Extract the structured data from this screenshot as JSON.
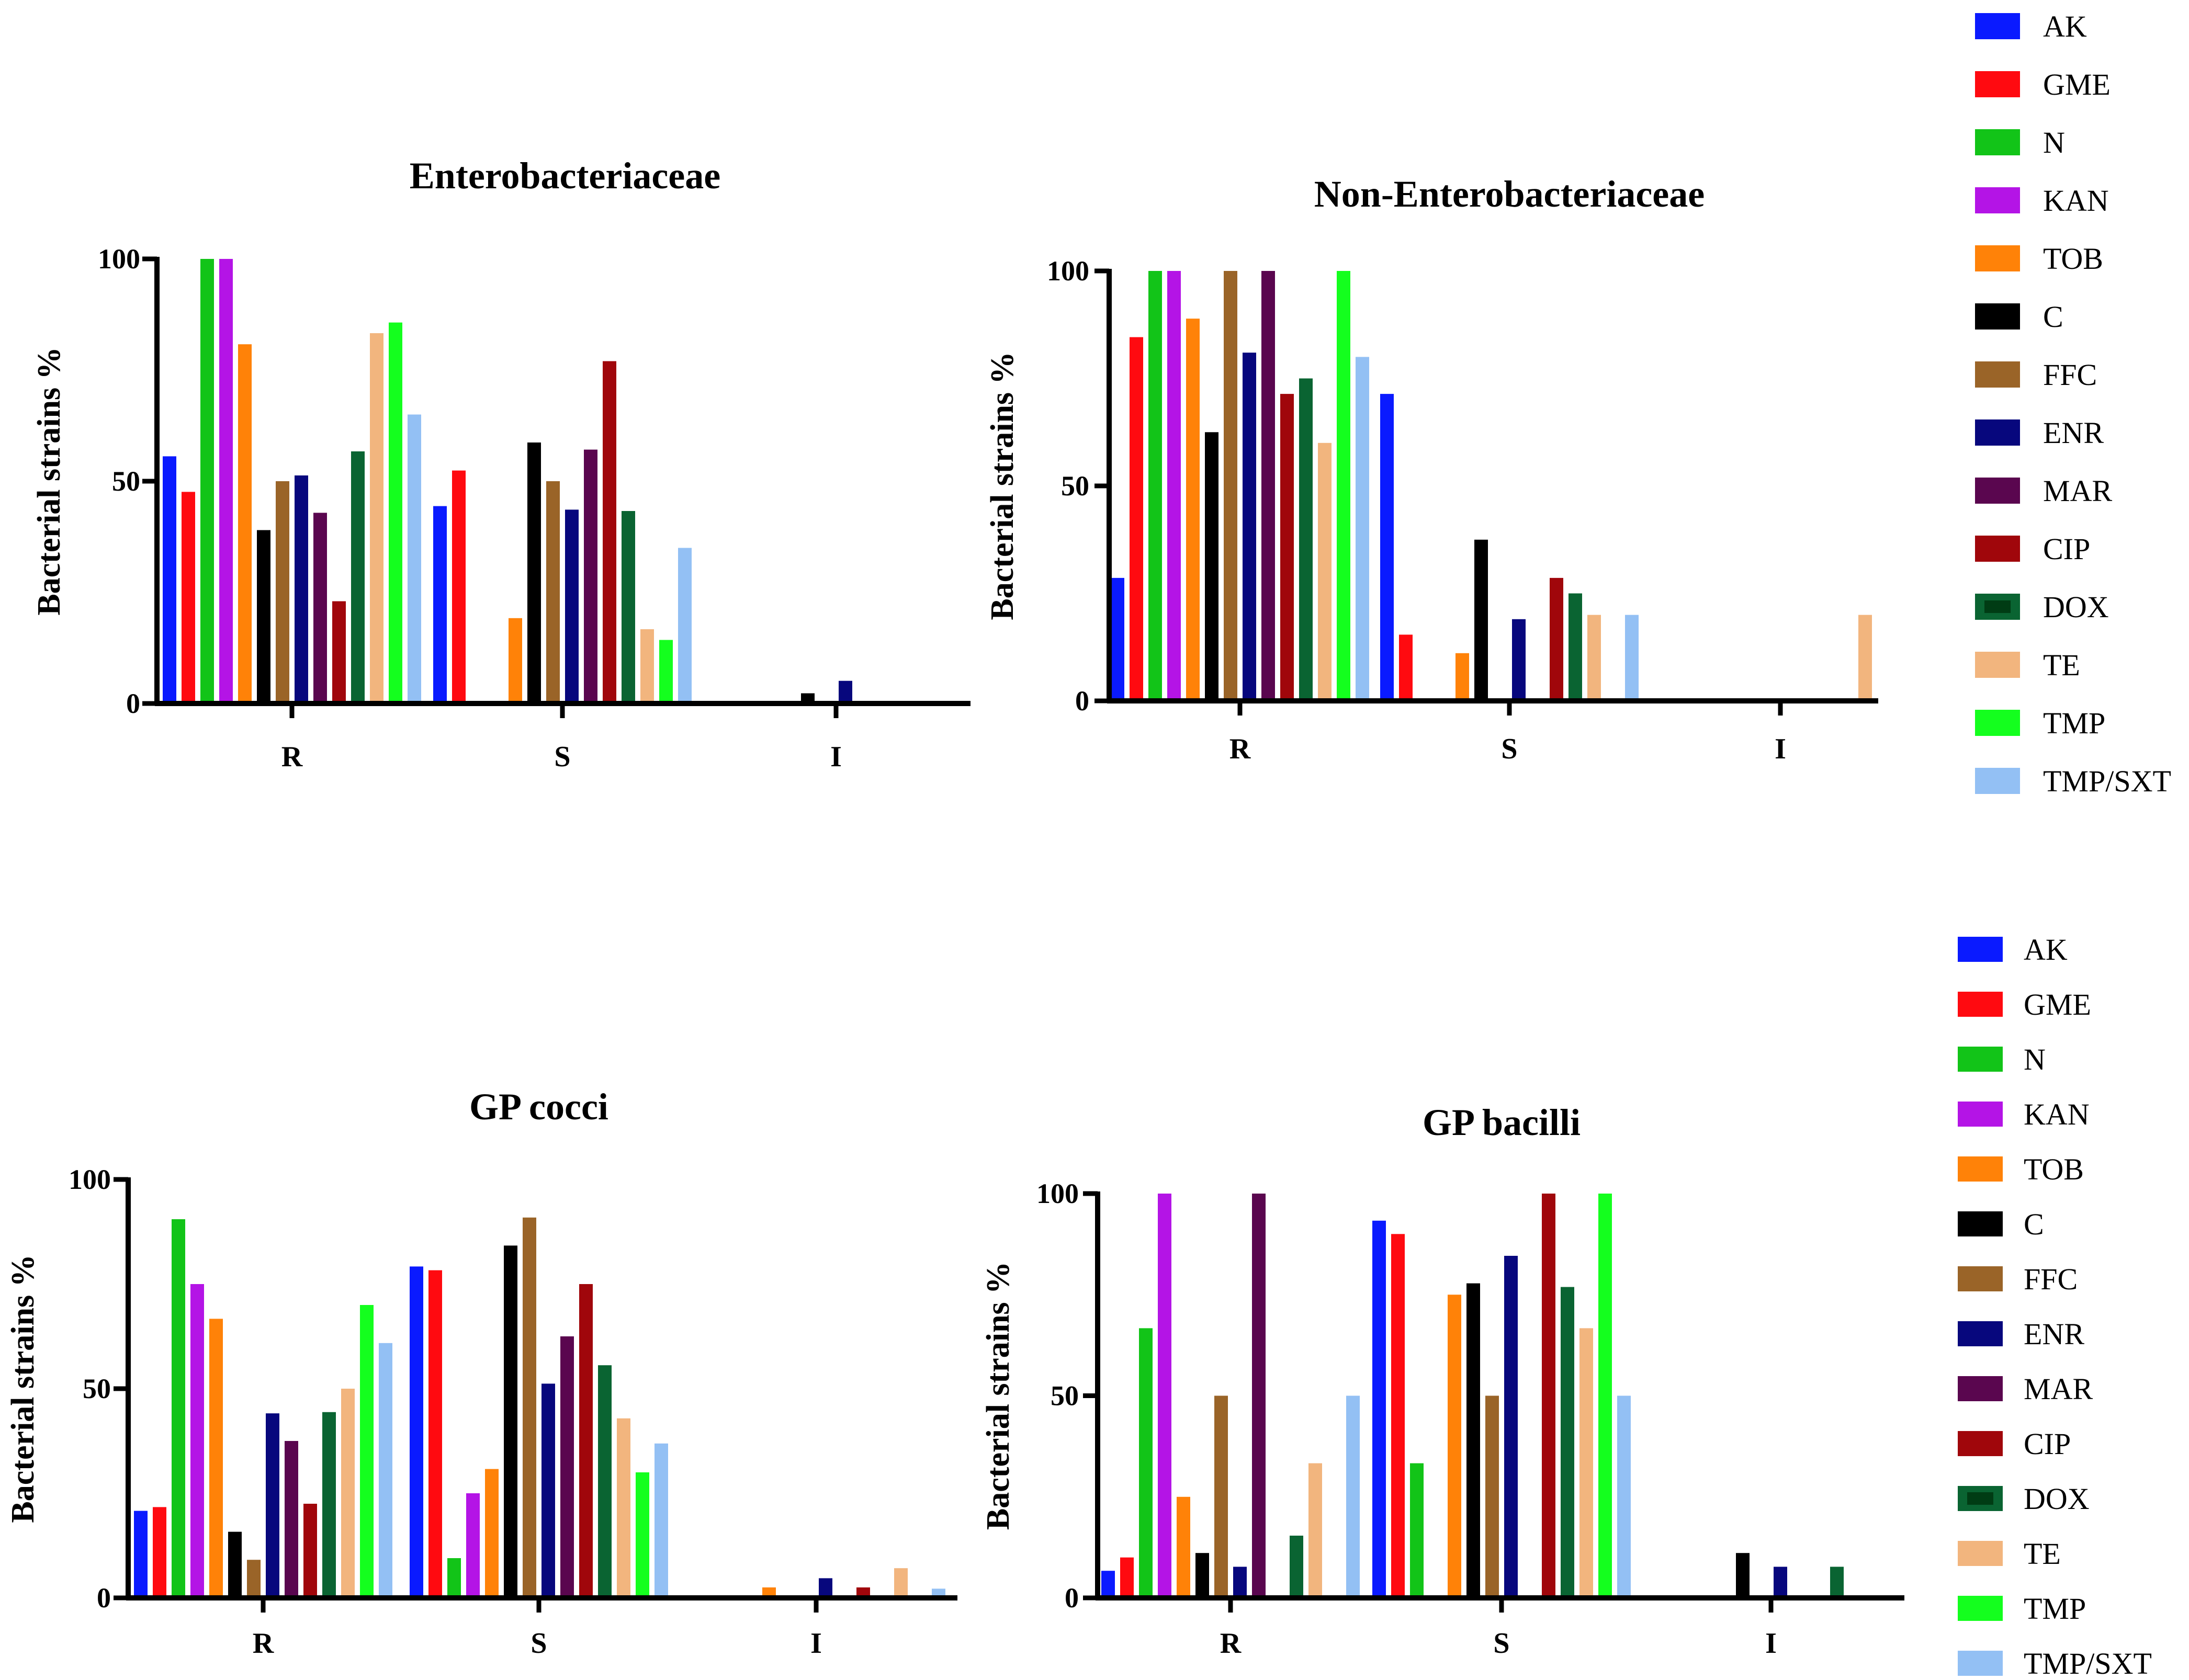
{
  "figure": {
    "colors": {
      "AK": "#0a1aff",
      "GME": "#ff0a10",
      "N": "#12c418",
      "KAN": "#b414e6",
      "TOB": "#ff8208",
      "C": "#000000",
      "FFC": "#9a6428",
      "ENR": "#07077d",
      "MAR": "#5a064f",
      "CIP": "#a0060b",
      "DOX": "#0a6432",
      "TE": "#f2b57e",
      "TMP": "#14ff1e",
      "TMP/SXT": "#93c0f4"
    }
  },
  "legends": [
    {
      "entries": [
        {
          "label": "AK",
          "color": "AK"
        },
        {
          "label": "GME",
          "color": "GME"
        },
        {
          "label": "N",
          "color": "N"
        },
        {
          "label": "KAN",
          "color": "KAN"
        },
        {
          "label": "TOB",
          "color": "TOB"
        },
        {
          "label": "C",
          "color": "C"
        },
        {
          "label": "FFC",
          "color": "FFC"
        },
        {
          "label": "ENR",
          "color": "ENR"
        },
        {
          "label": "MAR",
          "color": "MAR"
        },
        {
          "label": "CIP",
          "color": "CIP"
        },
        {
          "label": "DOX",
          "color": "DOX"
        },
        {
          "label": "TE",
          "color": "TE"
        },
        {
          "label": "TMP",
          "color": "TMP"
        },
        {
          "label": "TMP/SXT",
          "color": "TMP/SXT"
        }
      ]
    },
    {
      "entries": [
        {
          "label": "AK",
          "color": "AK"
        },
        {
          "label": "GME",
          "color": "GME"
        },
        {
          "label": "N",
          "color": "N"
        },
        {
          "label": "KAN",
          "color": "KAN"
        },
        {
          "label": "TOB",
          "color": "TOB"
        },
        {
          "label": "C",
          "color": "C"
        },
        {
          "label": "FFC",
          "color": "FFC"
        },
        {
          "label": "ENR",
          "color": "ENR"
        },
        {
          "label": "MAR",
          "color": "MAR"
        },
        {
          "label": "CIP",
          "color": "CIP"
        },
        {
          "label": "DOX",
          "color": "DOX"
        },
        {
          "label": "TE",
          "color": "TE"
        },
        {
          "label": "TMP",
          "color": "TMP"
        },
        {
          "label": "TMP/SXT",
          "color": "TMP/SXT"
        }
      ]
    }
  ],
  "chart_data": [
    {
      "type": "bar",
      "title": "Enterobacteriaceae",
      "xlabel": "",
      "ylabel": "Bacterial strains %",
      "ylim": [
        0,
        100
      ],
      "yticks": [
        "0",
        "50",
        "100"
      ],
      "categories": [
        "R",
        "S",
        "I"
      ],
      "series": [
        {
          "name": "AK",
          "values": [
            55.6,
            44.4,
            0
          ]
        },
        {
          "name": "GME",
          "values": [
            47.6,
            52.4,
            0
          ]
        },
        {
          "name": "N",
          "values": [
            100,
            0,
            0
          ]
        },
        {
          "name": "KAN",
          "values": [
            100,
            0,
            0
          ]
        },
        {
          "name": "TOB",
          "values": [
            80.8,
            19.2,
            0
          ]
        },
        {
          "name": "C",
          "values": [
            39,
            58.7,
            2.3
          ]
        },
        {
          "name": "FFC",
          "values": [
            50,
            50,
            0
          ]
        },
        {
          "name": "ENR",
          "values": [
            51.3,
            43.6,
            5.1
          ]
        },
        {
          "name": "MAR",
          "values": [
            42.9,
            57.1,
            0
          ]
        },
        {
          "name": "CIP",
          "values": [
            23,
            77,
            0
          ]
        },
        {
          "name": "DOX",
          "values": [
            56.7,
            43.3,
            0
          ]
        },
        {
          "name": "TE",
          "values": [
            83.3,
            16.7,
            0
          ]
        },
        {
          "name": "TMP",
          "values": [
            85.7,
            14.3,
            0
          ]
        },
        {
          "name": "TMP/SXT",
          "values": [
            65,
            35,
            0
          ]
        }
      ]
    },
    {
      "type": "bar",
      "title": "Non-Enterobacteriaceae",
      "xlabel": "",
      "ylabel": "Bacterial strains %",
      "ylim": [
        0,
        100
      ],
      "yticks": [
        "0",
        "50",
        "100"
      ],
      "categories": [
        "R",
        "S",
        "I"
      ],
      "series": [
        {
          "name": "AK",
          "values": [
            28.6,
            71.4,
            0
          ]
        },
        {
          "name": "GME",
          "values": [
            84.6,
            15.4,
            0
          ]
        },
        {
          "name": "N",
          "values": [
            100,
            0,
            0
          ]
        },
        {
          "name": "KAN",
          "values": [
            100,
            0,
            0
          ]
        },
        {
          "name": "TOB",
          "values": [
            88.9,
            11.1,
            0
          ]
        },
        {
          "name": "C",
          "values": [
            62.5,
            37.5,
            0
          ]
        },
        {
          "name": "FFC",
          "values": [
            100,
            0,
            0
          ]
        },
        {
          "name": "ENR",
          "values": [
            81,
            19,
            0
          ]
        },
        {
          "name": "MAR",
          "values": [
            100,
            0,
            0
          ]
        },
        {
          "name": "CIP",
          "values": [
            71.4,
            28.6,
            0
          ]
        },
        {
          "name": "DOX",
          "values": [
            75,
            25,
            0
          ]
        },
        {
          "name": "TE",
          "values": [
            60,
            20,
            20
          ]
        },
        {
          "name": "TMP",
          "values": [
            100,
            0,
            0
          ]
        },
        {
          "name": "TMP/SXT",
          "values": [
            80,
            20,
            0
          ]
        }
      ]
    },
    {
      "type": "bar",
      "title": "GP cocci",
      "xlabel": "",
      "ylabel": "Bacterial strains %",
      "ylim": [
        0,
        100
      ],
      "yticks": [
        "0",
        "50",
        "100"
      ],
      "categories": [
        "R",
        "S",
        "I"
      ],
      "series": [
        {
          "name": "AK",
          "values": [
            20.8,
            79.2,
            0
          ]
        },
        {
          "name": "GME",
          "values": [
            21.7,
            78.3,
            0
          ]
        },
        {
          "name": "N",
          "values": [
            90.5,
            9.5,
            0
          ]
        },
        {
          "name": "KAN",
          "values": [
            75,
            25,
            0
          ]
        },
        {
          "name": "TOB",
          "values": [
            66.7,
            30.8,
            2.5
          ]
        },
        {
          "name": "C",
          "values": [
            15.8,
            84.2,
            0
          ]
        },
        {
          "name": "FFC",
          "values": [
            9.1,
            90.9,
            0
          ]
        },
        {
          "name": "ENR",
          "values": [
            44.1,
            51.2,
            4.7
          ]
        },
        {
          "name": "MAR",
          "values": [
            37.5,
            62.5,
            0
          ]
        },
        {
          "name": "CIP",
          "values": [
            22.5,
            75,
            2.5
          ]
        },
        {
          "name": "DOX",
          "values": [
            44.4,
            55.6,
            0
          ]
        },
        {
          "name": "TE",
          "values": [
            50,
            42.9,
            7.1
          ]
        },
        {
          "name": "TMP",
          "values": [
            70,
            30,
            0
          ]
        },
        {
          "name": "TMP/SXT",
          "values": [
            60.9,
            36.9,
            2.2
          ]
        }
      ]
    },
    {
      "type": "bar",
      "title": "GP bacilli",
      "xlabel": "",
      "ylabel": "Bacterial strains %",
      "ylim": [
        0,
        100
      ],
      "yticks": [
        "0",
        "50",
        "100"
      ],
      "categories": [
        "R",
        "S",
        "I"
      ],
      "series": [
        {
          "name": "AK",
          "values": [
            6.7,
            93.3,
            0
          ]
        },
        {
          "name": "GME",
          "values": [
            10,
            90,
            0
          ]
        },
        {
          "name": "N",
          "values": [
            66.7,
            33.3,
            0
          ]
        },
        {
          "name": "KAN",
          "values": [
            100,
            0,
            0
          ]
        },
        {
          "name": "TOB",
          "values": [
            25,
            75,
            0
          ]
        },
        {
          "name": "C",
          "values": [
            11.1,
            77.8,
            11.1
          ]
        },
        {
          "name": "FFC",
          "values": [
            50,
            50,
            0
          ]
        },
        {
          "name": "ENR",
          "values": [
            7.7,
            84.6,
            7.7
          ]
        },
        {
          "name": "MAR",
          "values": [
            100,
            0,
            0
          ]
        },
        {
          "name": "CIP",
          "values": [
            0,
            100,
            0
          ]
        },
        {
          "name": "DOX",
          "values": [
            15.4,
            76.9,
            7.7
          ]
        },
        {
          "name": "TE",
          "values": [
            33.3,
            66.7,
            0
          ]
        },
        {
          "name": "TMP",
          "values": [
            0,
            100,
            0
          ]
        },
        {
          "name": "TMP/SXT",
          "values": [
            50,
            50,
            0
          ]
        }
      ]
    }
  ]
}
